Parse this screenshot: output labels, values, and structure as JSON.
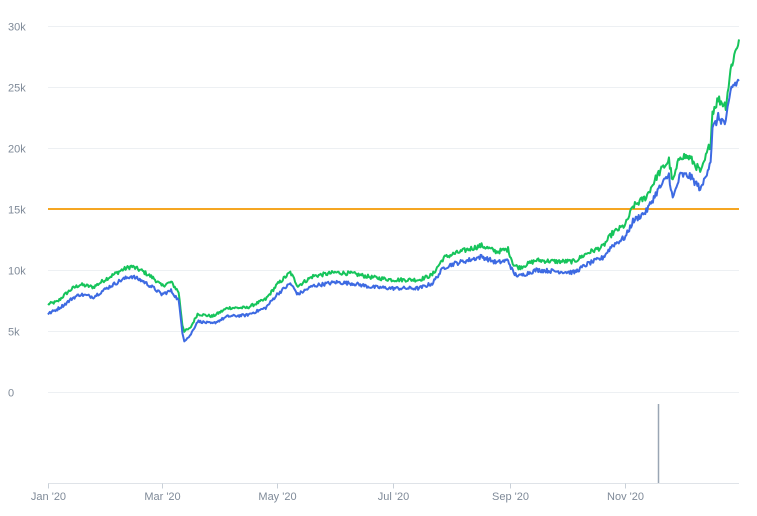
{
  "chart_data": {
    "type": "line",
    "title": "",
    "xlabel": "",
    "ylabel": "",
    "ylim": [
      0,
      30000
    ],
    "y_ticks": [
      0,
      5000,
      10000,
      15000,
      20000,
      25000,
      30000
    ],
    "y_tick_labels": [
      "0",
      "5k",
      "10k",
      "15k",
      "20k",
      "25k",
      "30k"
    ],
    "x_range": [
      "2020-01-01",
      "2020-12-31"
    ],
    "x_ticks": [
      "2020-01-01",
      "2020-03-01",
      "2020-05-01",
      "2020-07-01",
      "2020-09-01",
      "2020-11-01"
    ],
    "x_tick_labels": [
      "Jan '20",
      "Mar '20",
      "May '20",
      "Jul '20",
      "Sep '20",
      "Nov '20"
    ],
    "grid": true,
    "legend": "none",
    "reference_line": {
      "value": 15000,
      "color": "#f5a623"
    },
    "volume_spike": {
      "date": "2020-11-18"
    },
    "series": [
      {
        "color": "#16c45b",
        "points": [
          [
            "2020-01-01",
            7200
          ],
          [
            "2020-01-06",
            7400
          ],
          [
            "2020-01-10",
            8000
          ],
          [
            "2020-01-14",
            8500
          ],
          [
            "2020-01-18",
            8800
          ],
          [
            "2020-01-25",
            8600
          ],
          [
            "2020-02-01",
            9300
          ],
          [
            "2020-02-09",
            10000
          ],
          [
            "2020-02-14",
            10300
          ],
          [
            "2020-02-20",
            9900
          ],
          [
            "2020-02-26",
            9300
          ],
          [
            "2020-03-01",
            8700
          ],
          [
            "2020-03-06",
            9000
          ],
          [
            "2020-03-10",
            8200
          ],
          [
            "2020-03-12",
            5500
          ],
          [
            "2020-03-13",
            5000
          ],
          [
            "2020-03-16",
            5200
          ],
          [
            "2020-03-20",
            6400
          ],
          [
            "2020-03-28",
            6200
          ],
          [
            "2020-04-05",
            6900
          ],
          [
            "2020-04-15",
            6900
          ],
          [
            "2020-04-25",
            7600
          ],
          [
            "2020-05-01",
            8800
          ],
          [
            "2020-05-08",
            9800
          ],
          [
            "2020-05-12",
            8700
          ],
          [
            "2020-05-20",
            9500
          ],
          [
            "2020-06-01",
            9800
          ],
          [
            "2020-06-10",
            9700
          ],
          [
            "2020-06-20",
            9400
          ],
          [
            "2020-07-01",
            9200
          ],
          [
            "2020-07-15",
            9200
          ],
          [
            "2020-07-22",
            9600
          ],
          [
            "2020-07-28",
            11000
          ],
          [
            "2020-08-02",
            11300
          ],
          [
            "2020-08-10",
            11700
          ],
          [
            "2020-08-17",
            12000
          ],
          [
            "2020-08-25",
            11500
          ],
          [
            "2020-08-31",
            11700
          ],
          [
            "2020-09-03",
            10400
          ],
          [
            "2020-09-06",
            10200
          ],
          [
            "2020-09-15",
            10800
          ],
          [
            "2020-09-25",
            10700
          ],
          [
            "2020-10-05",
            10700
          ],
          [
            "2020-10-12",
            11400
          ],
          [
            "2020-10-20",
            11900
          ],
          [
            "2020-10-25",
            13000
          ],
          [
            "2020-11-01",
            13700
          ],
          [
            "2020-11-05",
            15200
          ],
          [
            "2020-11-12",
            16000
          ],
          [
            "2020-11-18",
            17800
          ],
          [
            "2020-11-24",
            19000
          ],
          [
            "2020-11-26",
            17200
          ],
          [
            "2020-11-30",
            19400
          ],
          [
            "2020-12-05",
            19200
          ],
          [
            "2020-12-11",
            18000
          ],
          [
            "2020-12-16",
            20500
          ],
          [
            "2020-12-17",
            23000
          ],
          [
            "2020-12-20",
            24000
          ],
          [
            "2020-12-24",
            23500
          ],
          [
            "2020-12-27",
            26800
          ],
          [
            "2020-12-31",
            28900
          ]
        ]
      },
      {
        "color": "#3d6ae2",
        "points": [
          [
            "2020-01-01",
            6400
          ],
          [
            "2020-01-06",
            6800
          ],
          [
            "2020-01-10",
            7200
          ],
          [
            "2020-01-14",
            7700
          ],
          [
            "2020-01-18",
            8000
          ],
          [
            "2020-01-25",
            7800
          ],
          [
            "2020-02-01",
            8500
          ],
          [
            "2020-02-09",
            9200
          ],
          [
            "2020-02-14",
            9500
          ],
          [
            "2020-02-20",
            9100
          ],
          [
            "2020-02-26",
            8500
          ],
          [
            "2020-03-01",
            8000
          ],
          [
            "2020-03-06",
            8300
          ],
          [
            "2020-03-10",
            7500
          ],
          [
            "2020-03-12",
            4900
          ],
          [
            "2020-03-13",
            4200
          ],
          [
            "2020-03-16",
            4600
          ],
          [
            "2020-03-20",
            5800
          ],
          [
            "2020-03-28",
            5600
          ],
          [
            "2020-04-05",
            6200
          ],
          [
            "2020-04-15",
            6300
          ],
          [
            "2020-04-25",
            6900
          ],
          [
            "2020-05-01",
            8000
          ],
          [
            "2020-05-08",
            8900
          ],
          [
            "2020-05-12",
            8000
          ],
          [
            "2020-05-20",
            8700
          ],
          [
            "2020-06-01",
            9000
          ],
          [
            "2020-06-10",
            8900
          ],
          [
            "2020-06-20",
            8600
          ],
          [
            "2020-07-01",
            8500
          ],
          [
            "2020-07-15",
            8500
          ],
          [
            "2020-07-22",
            8900
          ],
          [
            "2020-07-28",
            10200
          ],
          [
            "2020-08-02",
            10500
          ],
          [
            "2020-08-10",
            10800
          ],
          [
            "2020-08-17",
            11100
          ],
          [
            "2020-08-25",
            10600
          ],
          [
            "2020-08-31",
            10800
          ],
          [
            "2020-09-03",
            9700
          ],
          [
            "2020-09-06",
            9500
          ],
          [
            "2020-09-15",
            10000
          ],
          [
            "2020-09-25",
            9900
          ],
          [
            "2020-10-05",
            9800
          ],
          [
            "2020-10-12",
            10500
          ],
          [
            "2020-10-20",
            11000
          ],
          [
            "2020-10-25",
            12000
          ],
          [
            "2020-11-01",
            12700
          ],
          [
            "2020-11-05",
            14000
          ],
          [
            "2020-11-12",
            14800
          ],
          [
            "2020-11-18",
            16500
          ],
          [
            "2020-11-24",
            17800
          ],
          [
            "2020-11-26",
            15800
          ],
          [
            "2020-11-30",
            17800
          ],
          [
            "2020-12-05",
            17700
          ],
          [
            "2020-12-11",
            16600
          ],
          [
            "2020-12-16",
            19000
          ],
          [
            "2020-12-17",
            21500
          ],
          [
            "2020-12-20",
            22500
          ],
          [
            "2020-12-24",
            22000
          ],
          [
            "2020-12-27",
            25000
          ],
          [
            "2020-12-31",
            25500
          ]
        ]
      }
    ]
  }
}
